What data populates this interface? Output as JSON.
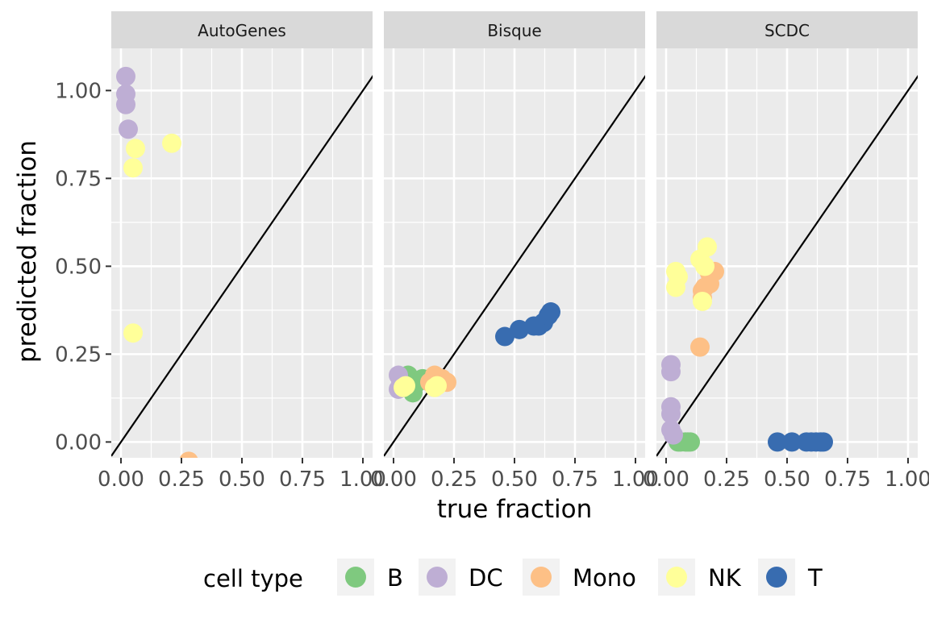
{
  "chart_data": {
    "type": "scatter",
    "xlabel": "true fraction",
    "ylabel": "predicted fraction",
    "xlim": [
      -0.04,
      1.04
    ],
    "ylim": [
      -0.045,
      1.12
    ],
    "x_ticks": [
      0.0,
      0.25,
      0.5,
      0.75,
      1.0
    ],
    "x_tick_labels": [
      "0.00",
      "0.25",
      "0.50",
      "0.75",
      "1.00"
    ],
    "y_ticks": [
      0.0,
      0.25,
      0.5,
      0.75,
      1.0
    ],
    "y_tick_labels": [
      "0.00",
      "0.25",
      "0.50",
      "0.75",
      "1.00"
    ],
    "grid": true,
    "reference_line": "y = x",
    "legend": {
      "title": "cell type",
      "position": "bottom",
      "entries": [
        {
          "label": "B",
          "color": "#7FC97F"
        },
        {
          "label": "DC",
          "color": "#BEAED4"
        },
        {
          "label": "Mono",
          "color": "#FDC086"
        },
        {
          "label": "NK",
          "color": "#FFFF99"
        },
        {
          "label": "T",
          "color": "#386CB0"
        }
      ]
    },
    "panels": [
      {
        "title": "AutoGenes",
        "series": [
          {
            "name": "DC",
            "x": [
              0.02,
              0.02,
              0.02,
              0.03
            ],
            "y": [
              1.04,
              0.99,
              0.96,
              0.89
            ]
          },
          {
            "name": "NK",
            "x": [
              0.06,
              0.05,
              0.21,
              0.05
            ],
            "y": [
              0.835,
              0.78,
              0.85,
              0.31
            ]
          },
          {
            "name": "Mono",
            "x": [
              0.28
            ],
            "y": [
              -0.055
            ]
          }
        ]
      },
      {
        "title": "Bisque",
        "series": [
          {
            "name": "B",
            "x": [
              0.06,
              0.08,
              0.1,
              0.12
            ],
            "y": [
              0.19,
              0.14,
              0.17,
              0.18
            ]
          },
          {
            "name": "DC",
            "x": [
              0.02,
              0.02,
              0.03,
              0.04
            ],
            "y": [
              0.19,
              0.15,
              0.17,
              0.16
            ]
          },
          {
            "name": "Mono",
            "x": [
              0.17,
              0.19,
              0.2,
              0.22,
              0.15
            ],
            "y": [
              0.19,
              0.175,
              0.18,
              0.17,
              0.17
            ]
          },
          {
            "name": "NK",
            "x": [
              0.04,
              0.05,
              0.17,
              0.18
            ],
            "y": [
              0.155,
              0.16,
              0.155,
              0.16
            ]
          },
          {
            "name": "T",
            "x": [
              0.46,
              0.52,
              0.58,
              0.6,
              0.62,
              0.64,
              0.65
            ],
            "y": [
              0.3,
              0.32,
              0.33,
              0.33,
              0.34,
              0.36,
              0.37
            ]
          }
        ]
      },
      {
        "title": "SCDC",
        "series": [
          {
            "name": "B",
            "x": [
              0.05,
              0.06,
              0.08,
              0.09,
              0.1
            ],
            "y": [
              0.0,
              0.0,
              0.0,
              0.0,
              0.0
            ]
          },
          {
            "name": "DC",
            "x": [
              0.02,
              0.02,
              0.02,
              0.02,
              0.02,
              0.03
            ],
            "y": [
              0.22,
              0.2,
              0.1,
              0.08,
              0.035,
              0.02
            ]
          },
          {
            "name": "Mono",
            "x": [
              0.14,
              0.15,
              0.16,
              0.18,
              0.18,
              0.2,
              0.15
            ],
            "y": [
              0.27,
              0.43,
              0.44,
              0.45,
              0.48,
              0.485,
              0.41
            ]
          },
          {
            "name": "NK",
            "x": [
              0.04,
              0.04,
              0.05,
              0.14,
              0.16,
              0.17,
              0.15
            ],
            "y": [
              0.485,
              0.44,
              0.47,
              0.52,
              0.5,
              0.555,
              0.4
            ]
          },
          {
            "name": "T",
            "x": [
              0.46,
              0.52,
              0.58,
              0.6,
              0.62,
              0.64,
              0.65
            ],
            "y": [
              0.0,
              0.0,
              0.0,
              0.0,
              0.0,
              0.0,
              0.0
            ]
          }
        ]
      }
    ]
  }
}
